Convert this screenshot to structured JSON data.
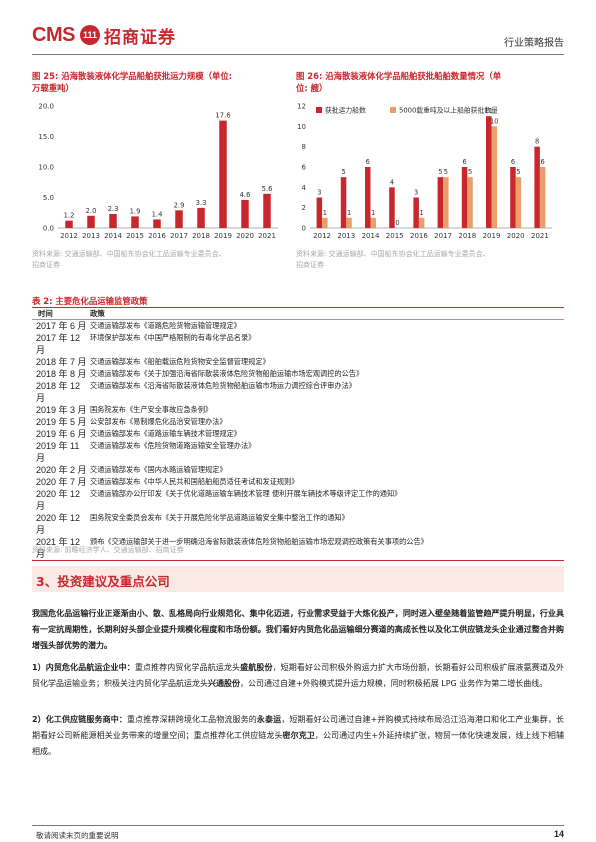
{
  "header": {
    "logo_latin": "CMS",
    "logo_mark": "111",
    "logo_cn": "招商证券",
    "doc_type": "行业策略报告"
  },
  "fig25": {
    "title_line1": "图 25: 沿海散装液体化学品船舶获批运力规模（单位:",
    "title_line2": "万载重吨）",
    "source_line1": "资料来源: 交通运输部、中国船东协会化工品运输专业委员会、",
    "source_line2": "招商证券",
    "color": "#c8272d"
  },
  "fig26": {
    "title_line1": "图 26: 沿海散装液体化学品船舶获批船舶数量情况（单",
    "title_line2": "位: 艘）",
    "source_line1": "资料来源: 交通运输部、中国船东协会化工品运输专业委员会、",
    "source_line2": "招商证券",
    "color_a": "#c8272d",
    "color_b": "#e8a06a"
  },
  "chart_data": [
    {
      "type": "bar",
      "categories": [
        "2012",
        "2013",
        "2014",
        "2015",
        "2016",
        "2017",
        "2018",
        "2019",
        "2020",
        "2021"
      ],
      "values": [
        1.2,
        2.0,
        2.3,
        1.9,
        1.4,
        2.9,
        3.3,
        17.6,
        4.6,
        5.6
      ],
      "data_labels": [
        "1.2",
        "2.0",
        "2.3",
        "1.9",
        "1.4",
        "2.9",
        "3.3",
        "17.6",
        "4.6",
        "5.6"
      ],
      "ylim": [
        0,
        20
      ],
      "yticks": [
        "0.0",
        "5.0",
        "10.0",
        "15.0",
        "20.0"
      ],
      "grid": false
    },
    {
      "type": "bar",
      "categories": [
        "2012",
        "2013",
        "2014",
        "2015",
        "2016",
        "2017",
        "2018",
        "2019",
        "2020",
        "2021"
      ],
      "series": [
        {
          "name": "获批运力船数",
          "values": [
            3,
            5,
            6,
            4,
            3,
            5,
            6,
            11,
            6,
            8
          ],
          "labels": [
            "3",
            "5",
            "6",
            "4",
            "3",
            "5",
            "6",
            "11",
            "6",
            "8"
          ]
        },
        {
          "name": "5000载重吨及以上船舶获批数量",
          "values": [
            1,
            1,
            1,
            0,
            1,
            5,
            5,
            10,
            5,
            6
          ],
          "labels": [
            "1",
            "1",
            "1",
            "0",
            "1",
            "5",
            "5",
            "10",
            "5",
            "6"
          ]
        }
      ],
      "ylim": [
        0,
        12
      ],
      "yticks": [
        "0",
        "2",
        "4",
        "6",
        "8",
        "10",
        "12"
      ],
      "legend": "top-left",
      "grid": false
    }
  ],
  "table": {
    "title": "表 2: 主要危化品运输监管政策",
    "col_time": "时间",
    "col_policy": "政策",
    "rows": [
      {
        "time": "2017 年 6 月",
        "text": "交通运输部发布《道路危险货物运输管理规定》"
      },
      {
        "time": "2017 年 12 月",
        "text": "环境保护部发布《中国严格限制的有毒化学品名录》"
      },
      {
        "time": "2018 年 7 月",
        "text": "交通运输部发布《船舶载运危险货物安全监督管理规定》"
      },
      {
        "time": "2018 年 8 月",
        "text": "交通运输部发布《关于加强沿海省际散装液体危险货物船舶运输市场宏观调控的公告》"
      },
      {
        "time": "2018 年 12 月",
        "text": "交通运输部发布《沿海省际散装液体危险货物船舶运输市场运力调控综合评审办法》"
      },
      {
        "time": "2019 年 3 月",
        "text": "国务院发布《生产安全事故应急条例》"
      },
      {
        "time": "2019 年 5 月",
        "text": "公安部发布《易制爆危化品治安管理办法》"
      },
      {
        "time": "2019 年 6 月",
        "text": "交通运输部发布《道路运输车辆技术管理规定》"
      },
      {
        "time": "2019 年 11 月",
        "text": "交通运输部发布《危险货物道路运输安全管理办法》"
      },
      {
        "time": "2020 年 2 月",
        "text": "交通运输部发布《国内水路运输管理规定》"
      },
      {
        "time": "2020 年 7 月",
        "text": "交通运输部发布《中华人民共和国船舶船员适任考试和发证规则》"
      },
      {
        "time": "2020 年 12 月",
        "text": "交通运输部办公厅印发《关于优化道路运输车辆技术管理 便利开展车辆技术等级评定工作的通知》"
      },
      {
        "time": "2020 年 12 月",
        "text": "国务院安全委员会发布《关于开展危险化学品道路运输安全集中整治工作的通知》"
      },
      {
        "time": "2021 年 12 月",
        "text": "颁布《交通运输部关于进一步明确沿海省际散装液体危险货物船舶运输市场宏观调控政策有关事项的公告》"
      }
    ],
    "source": "资料来源: 前瞻经济学人、交通运输部、招商证券"
  },
  "section": {
    "title": "3、投资建议及重点公司"
  },
  "paragraphs": {
    "p1": "我国危化品运输行业正逐渐由小、散、乱格局向行业规范化、集中化迈进，行业需求受益于大炼化投产，同时进入壁垒随着监管趋严提升明显，行业具有一定抗周期性，长期利好头部企业提升规模化程度和市场份额。我们看好内贸危化品运输细分赛道的高成长性以及化工供应链龙头企业通过整合并购增强头部优势的潜力。",
    "p2_lead": "1）内贸危化品航运企业中：",
    "p2_a": "重点推荐内贸化学品航运龙头",
    "p2_b": "盛航股份",
    "p2_c": "，短期看好公司积极外购运力扩大市场份额，长期看好公司积极扩展液氨赛道及外贸化学品运输业务；积极关注内贸化学品航运龙头",
    "p2_d": "兴通股份",
    "p2_e": "，公司通过自建+外购模式提升运力规模，同时积极拓展 LPG 业务作为第二增长曲线。",
    "p3_lead": "2）化工供应链服务商中：",
    "p3_a": "重点推荐深耕跨境化工品物流服务的",
    "p3_b": "永泰运",
    "p3_c": "，短期看好公司通过自建+并购模式持续布局沿江沿海港口和化工产业集群，长期看好公司新能源相关业务带来的增量空间；重点推荐化工供应链龙头",
    "p3_d": "密尔克卫",
    "p3_e": "，公司通过内生+外延持续扩张，物贸一体化快速发展，线上线下相辅相成。"
  },
  "footer": {
    "disclaimer": "敬请阅读末页的重要说明",
    "page": "14"
  }
}
